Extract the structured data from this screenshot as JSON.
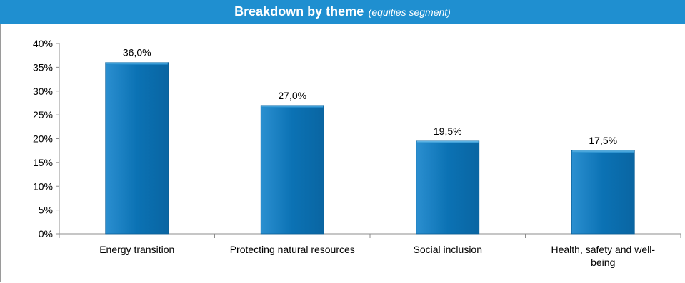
{
  "header": {
    "title": "Breakdown by theme",
    "subtitle": "(equities segment)",
    "bar_color": "#1f8fd0",
    "title_color": "#ffffff"
  },
  "chart_data": {
    "type": "bar",
    "title": "Breakdown by theme",
    "subtitle": "(equities segment)",
    "categories": [
      [
        "Energy transition"
      ],
      [
        "Protecting natural resources"
      ],
      [
        "Social inclusion"
      ],
      [
        "Health, safety and well-",
        "being"
      ]
    ],
    "series": [
      {
        "values": [
          36.0,
          27.0,
          19.5,
          17.5
        ],
        "data_labels": [
          "36,0%",
          "27,0%",
          "19,5%",
          "17,5%"
        ],
        "color": "#0e7cc0"
      }
    ],
    "ylim": [
      0,
      40
    ],
    "yticks": [
      0,
      5,
      10,
      15,
      20,
      25,
      30,
      35,
      40
    ],
    "ytick_labels": [
      "0%",
      "5%",
      "10%",
      "15%",
      "20%",
      "25%",
      "30%",
      "35%",
      "40%"
    ],
    "xlabel": "",
    "ylabel": "",
    "grid": false,
    "legend": "none"
  }
}
